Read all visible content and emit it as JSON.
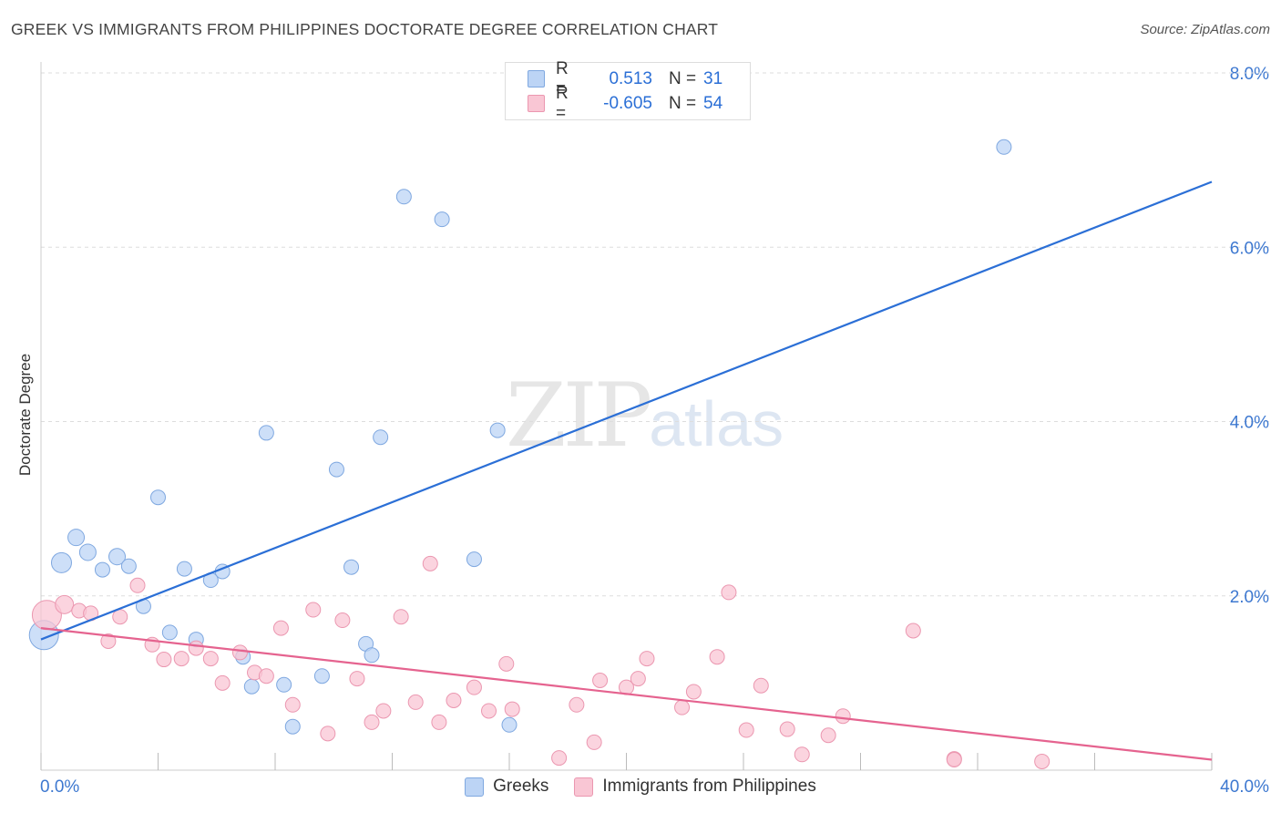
{
  "title": "GREEK VS IMMIGRANTS FROM PHILIPPINES DOCTORATE DEGREE CORRELATION CHART",
  "source": "Source: ZipAtlas.com",
  "watermark": {
    "zip": "ZIP",
    "atlas": "atlas"
  },
  "legend": {
    "r_label": "R =",
    "n_label": "N =",
    "series": [
      {
        "r": "0.513",
        "n": "31"
      },
      {
        "r": "-0.605",
        "n": "54"
      }
    ]
  },
  "colors": {
    "blue_fill": "#bcd4f5",
    "blue_stroke": "#7fa8e0",
    "blue_line": "#2b6fd6",
    "pink_fill": "#f9c6d4",
    "pink_stroke": "#eb97b0",
    "pink_line": "#e5638f",
    "axis_text": "#3d78d0",
    "grid": "#dddddd"
  },
  "chart_data": {
    "type": "scatter",
    "ylabel": "Doctorate Degree",
    "xlim": [
      0,
      40
    ],
    "ylim": [
      0,
      8
    ],
    "x_tick_labels": [
      "0.0%",
      "40.0%"
    ],
    "y_ticks": [
      2,
      4,
      6,
      8
    ],
    "y_tick_labels": [
      "2.0%",
      "4.0%",
      "6.0%",
      "8.0%"
    ],
    "grid": true,
    "series": [
      {
        "name": "Greeks",
        "color": "#bcd4f5",
        "trend": [
          [
            0,
            1.5
          ],
          [
            40,
            6.75
          ]
        ],
        "points": [
          [
            0.1,
            1.55,
            16
          ],
          [
            0.7,
            2.38,
            11
          ],
          [
            1.2,
            2.67,
            9
          ],
          [
            1.6,
            2.5,
            9
          ],
          [
            2.1,
            2.3,
            8
          ],
          [
            2.6,
            2.45,
            9
          ],
          [
            3.0,
            2.34,
            8
          ],
          [
            3.5,
            1.88,
            8
          ],
          [
            4.0,
            3.13,
            8
          ],
          [
            4.4,
            1.58,
            8
          ],
          [
            4.9,
            2.31,
            8
          ],
          [
            5.3,
            1.5,
            8
          ],
          [
            5.8,
            2.18,
            8
          ],
          [
            6.2,
            2.28,
            8
          ],
          [
            6.9,
            1.3,
            8
          ],
          [
            7.2,
            0.96,
            8
          ],
          [
            7.7,
            3.87,
            8
          ],
          [
            8.3,
            0.98,
            8
          ],
          [
            8.6,
            0.5,
            8
          ],
          [
            9.6,
            1.08,
            8
          ],
          [
            10.1,
            3.45,
            8
          ],
          [
            10.6,
            2.33,
            8
          ],
          [
            11.1,
            1.45,
            8
          ],
          [
            11.3,
            1.32,
            8
          ],
          [
            11.6,
            3.82,
            8
          ],
          [
            12.4,
            6.58,
            8
          ],
          [
            13.7,
            6.32,
            8
          ],
          [
            14.8,
            2.42,
            8
          ],
          [
            15.6,
            3.9,
            8
          ],
          [
            16.0,
            0.52,
            8
          ],
          [
            32.9,
            7.15,
            8
          ]
        ]
      },
      {
        "name": "Immigrants from Philippines",
        "color": "#f9c6d4",
        "trend": [
          [
            0,
            1.63
          ],
          [
            40,
            0.12
          ]
        ],
        "points": [
          [
            0.2,
            1.78,
            16
          ],
          [
            0.8,
            1.9,
            10
          ],
          [
            1.3,
            1.83,
            8
          ],
          [
            1.7,
            1.8,
            8
          ],
          [
            2.3,
            1.48,
            8
          ],
          [
            2.7,
            1.76,
            8
          ],
          [
            3.3,
            2.12,
            8
          ],
          [
            3.8,
            1.44,
            8
          ],
          [
            4.2,
            1.27,
            8
          ],
          [
            4.8,
            1.28,
            8
          ],
          [
            5.3,
            1.4,
            8
          ],
          [
            5.8,
            1.28,
            8
          ],
          [
            6.2,
            1.0,
            8
          ],
          [
            6.8,
            1.35,
            8
          ],
          [
            7.3,
            1.12,
            8
          ],
          [
            7.7,
            1.08,
            8
          ],
          [
            8.2,
            1.63,
            8
          ],
          [
            8.6,
            0.75,
            8
          ],
          [
            9.3,
            1.84,
            8
          ],
          [
            9.8,
            0.42,
            8
          ],
          [
            10.3,
            1.72,
            8
          ],
          [
            10.8,
            1.05,
            8
          ],
          [
            11.3,
            0.55,
            8
          ],
          [
            11.7,
            0.68,
            8
          ],
          [
            12.3,
            1.76,
            8
          ],
          [
            12.8,
            0.78,
            8
          ],
          [
            13.3,
            2.37,
            8
          ],
          [
            13.6,
            0.55,
            8
          ],
          [
            14.1,
            0.8,
            8
          ],
          [
            14.8,
            0.95,
            8
          ],
          [
            15.3,
            0.68,
            8
          ],
          [
            15.9,
            1.22,
            8
          ],
          [
            16.1,
            0.7,
            8
          ],
          [
            17.7,
            0.14,
            8
          ],
          [
            18.3,
            0.75,
            8
          ],
          [
            18.9,
            0.32,
            8
          ],
          [
            19.1,
            1.03,
            8
          ],
          [
            20.0,
            0.95,
            8
          ],
          [
            20.4,
            1.05,
            8
          ],
          [
            20.7,
            1.28,
            8
          ],
          [
            21.9,
            0.72,
            8
          ],
          [
            22.3,
            0.9,
            8
          ],
          [
            23.1,
            1.3,
            8
          ],
          [
            23.5,
            2.04,
            8
          ],
          [
            24.1,
            0.46,
            8
          ],
          [
            24.6,
            0.97,
            8
          ],
          [
            25.5,
            0.47,
            8
          ],
          [
            26.0,
            0.18,
            8
          ],
          [
            26.9,
            0.4,
            8
          ],
          [
            27.4,
            0.62,
            8
          ],
          [
            29.8,
            1.6,
            8
          ],
          [
            31.2,
            0.13,
            8
          ],
          [
            31.2,
            0.12,
            8
          ],
          [
            34.2,
            0.1,
            8
          ]
        ]
      }
    ]
  }
}
